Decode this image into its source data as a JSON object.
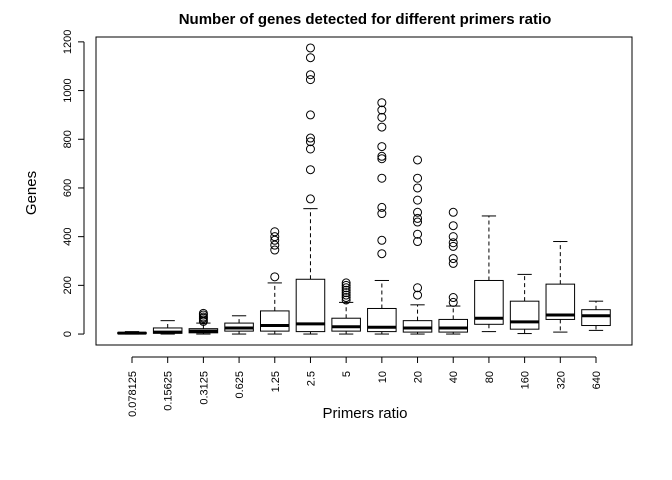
{
  "chart_data": {
    "type": "boxplot",
    "title": "Number of genes detected for different primers ratio",
    "xlabel": "Primers ratio",
    "ylabel": "Genes",
    "ylim": [
      -45,
      1220
    ],
    "yticks": [
      0,
      200,
      400,
      600,
      800,
      1000,
      1200
    ],
    "grid": false,
    "categories": [
      "0.078125",
      "0.15625",
      "0.3125",
      "0.625",
      "1.25",
      "2.5",
      "5",
      "10",
      "20",
      "40",
      "80",
      "160",
      "320",
      "640"
    ],
    "boxes": [
      {
        "whisker_low": 0,
        "q1": 2,
        "median": 4,
        "q3": 6,
        "whisker_high": 10,
        "outliers": []
      },
      {
        "whisker_low": 0,
        "q1": 3,
        "median": 8,
        "q3": 25,
        "whisker_high": 55,
        "outliers": []
      },
      {
        "whisker_low": 0,
        "q1": 5,
        "median": 12,
        "q3": 22,
        "whisker_high": 45,
        "outliers": [
          52,
          58,
          65,
          70,
          78,
          85
        ]
      },
      {
        "whisker_low": 0,
        "q1": 12,
        "median": 25,
        "q3": 45,
        "whisker_high": 75,
        "outliers": []
      },
      {
        "whisker_low": 0,
        "q1": 12,
        "median": 35,
        "q3": 95,
        "whisker_high": 210,
        "outliers": [
          235,
          345,
          365,
          385,
          400,
          420
        ]
      },
      {
        "whisker_low": 0,
        "q1": 10,
        "median": 42,
        "q3": 225,
        "whisker_high": 515,
        "outliers": [
          555,
          675,
          760,
          790,
          805,
          900,
          1045,
          1065,
          1135,
          1175
        ]
      },
      {
        "whisker_low": 0,
        "q1": 12,
        "median": 30,
        "q3": 65,
        "whisker_high": 130,
        "outliers": [
          140,
          150,
          160,
          170,
          180,
          190,
          200,
          210
        ]
      },
      {
        "whisker_low": 0,
        "q1": 10,
        "median": 28,
        "q3": 105,
        "whisker_high": 220,
        "outliers": [
          330,
          385,
          495,
          520,
          640,
          720,
          730,
          770,
          850,
          890,
          920,
          950
        ]
      },
      {
        "whisker_low": 0,
        "q1": 8,
        "median": 25,
        "q3": 55,
        "whisker_high": 120,
        "outliers": [
          160,
          190,
          380,
          410,
          460,
          475,
          500,
          550,
          600,
          640,
          715
        ]
      },
      {
        "whisker_low": 0,
        "q1": 8,
        "median": 25,
        "q3": 60,
        "whisker_high": 115,
        "outliers": [
          130,
          150,
          290,
          310,
          360,
          375,
          400,
          445,
          500
        ]
      },
      {
        "whisker_low": 10,
        "q1": 40,
        "median": 65,
        "q3": 220,
        "whisker_high": 485,
        "outliers": []
      },
      {
        "whisker_low": 2,
        "q1": 20,
        "median": 50,
        "q3": 135,
        "whisker_high": 245,
        "outliers": []
      },
      {
        "whisker_low": 8,
        "q1": 60,
        "median": 78,
        "q3": 205,
        "whisker_high": 380,
        "outliers": []
      },
      {
        "whisker_low": 15,
        "q1": 35,
        "median": 75,
        "q3": 100,
        "whisker_high": 135,
        "outliers": []
      }
    ]
  }
}
